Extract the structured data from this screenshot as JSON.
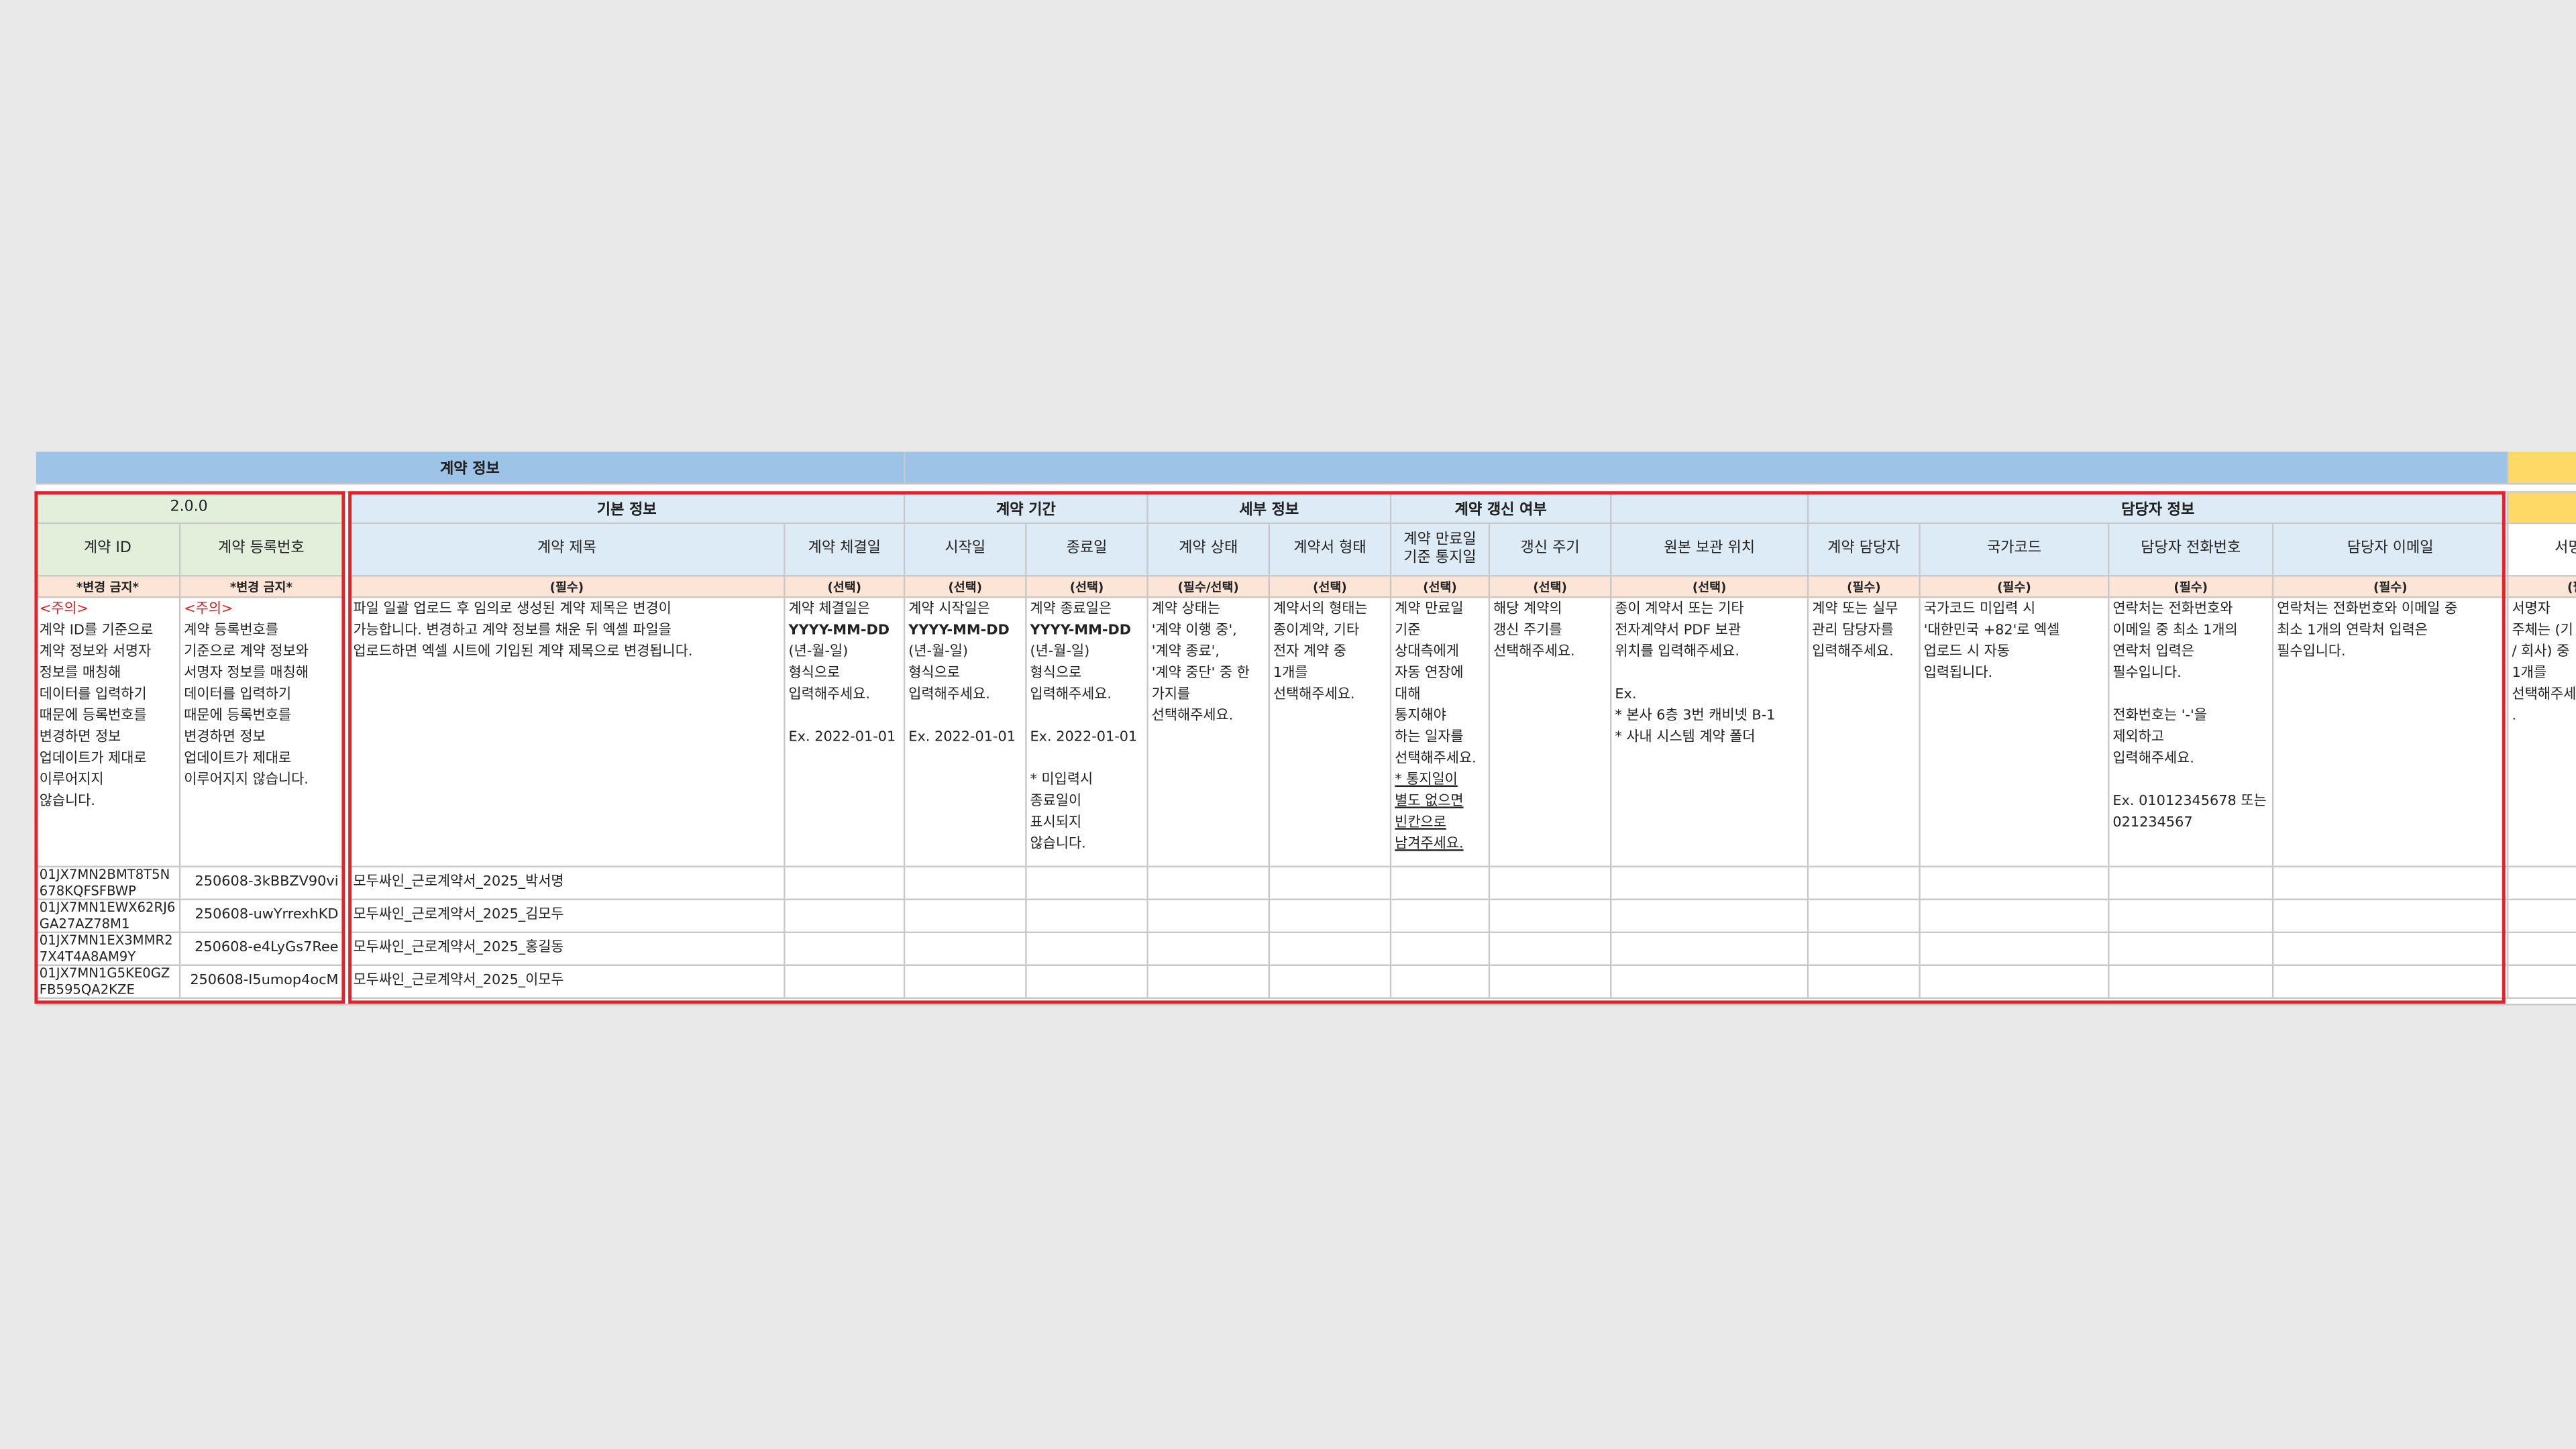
{
  "top_header": {
    "title": "계약 정보"
  },
  "version": "2.0.0",
  "groups": [
    "기본 정보",
    "계약 기간",
    "세부 정보",
    "계약 갱신 여부",
    "담당자 정보"
  ],
  "columns": [
    {
      "header": [
        "계약 ID"
      ],
      "requirement": "*변경 금지*",
      "note": "<주의>",
      "description": [
        [
          "계약 ID를 기준으로",
          "계약 정보와 서명자",
          "정보를 매칭해",
          "데이터를 입력하기",
          "때문에 등록번호를",
          "변경하면 정보",
          "업데이트가 제대로",
          "이루어지지",
          "않습니다."
        ]
      ]
    },
    {
      "header": [
        "계약 등록번호"
      ],
      "requirement": "*변경 금지*",
      "note": "<주의>",
      "description": [
        [
          "계약 등록번호를",
          "기준으로 계약 정보와",
          "서명자 정보를 매칭해",
          "데이터를 입력하기",
          "때문에 등록번호를",
          "변경하면 정보",
          "업데이트가 제대로",
          "이루어지지 않습니다."
        ]
      ]
    },
    {
      "header": [
        "계약 제목"
      ],
      "requirement": "(필수)",
      "description": [
        [
          "파일 일괄 업로드 후 임의로 생성된 계약 제목은 변경이",
          "가능합니다. 변경하고 계약 정보를 채운 뒤 엑셀 파일을",
          "업로드하면 엑셀 시트에 기입된 계약 제목으로 변경됩니다."
        ]
      ]
    },
    {
      "header": [
        "계약 체결일"
      ],
      "requirement": "(선택)",
      "description": [
        [
          "계약 체결일은",
          "YYYY-MM-DD",
          "(년-월-일)",
          "형식으로",
          "입력해주세요."
        ],
        [
          "Ex. 2022-01-01"
        ]
      ]
    },
    {
      "header": [
        "시작일"
      ],
      "requirement": "(선택)",
      "description": [
        [
          "계약 시작일은",
          "YYYY-MM-DD",
          "(년-월-일)",
          "형식으로",
          "입력해주세요."
        ],
        [
          "Ex. 2022-01-01"
        ]
      ]
    },
    {
      "header": [
        "종료일"
      ],
      "requirement": "(선택)",
      "description": [
        [
          "계약 종료일은",
          "YYYY-MM-DD",
          "(년-월-일)",
          "형식으로",
          "입력해주세요."
        ],
        [
          "Ex. 2022-01-01"
        ],
        [
          "* 미입력시",
          "종료일이",
          "표시되지",
          "않습니다."
        ]
      ]
    },
    {
      "header": [
        "계약 상태"
      ],
      "requirement": "(필수/선택)",
      "description": [
        [
          "계약 상태는",
          "'계약 이행 중',",
          "'계약 종료',",
          "'계약 중단' 중 한",
          "가지를",
          "선택해주세요."
        ]
      ]
    },
    {
      "header": [
        "계약서 형태"
      ],
      "requirement": "(선택)",
      "description": [
        [
          "계약서의 형태는",
          "종이계약, 기타",
          "전자 계약 중",
          "1개를",
          "선택해주세요."
        ]
      ]
    },
    {
      "header": [
        "계약 만료일",
        "기준 통지일"
      ],
      "requirement": "(선택)",
      "description": [
        [
          "계약 만료일",
          "기준",
          "상대측에게",
          "자동 연장에",
          "대해",
          "통지해야",
          "하는 일자를",
          "선택해주세요."
        ],
        [
          "* 통지일이",
          "별도 없으면",
          "빈칸으로",
          "남겨주세요."
        ]
      ]
    },
    {
      "header": [
        "갱신 주기"
      ],
      "requirement": "(선택)",
      "description": [
        [
          "해당 계약의",
          "갱신 주기를",
          "선택해주세요."
        ]
      ]
    },
    {
      "header": [
        "원본 보관 위치"
      ],
      "requirement": "(선택)",
      "description": [
        [
          "종이 계약서 또는 기타",
          "전자계약서 PDF 보관",
          "위치를 입력해주세요."
        ],
        [
          "Ex.",
          "* 본사 6층 3번 캐비넷 B-1",
          "* 사내 시스템 계약 폴더"
        ]
      ]
    },
    {
      "header": [
        "계약 담당자"
      ],
      "requirement": "(필수)",
      "description": [
        [
          "계약 또는 실무",
          "관리 담당자를",
          "입력해주세요."
        ]
      ]
    },
    {
      "header": [
        "국가코드"
      ],
      "requirement": "(필수)",
      "description": [
        [
          "국가코드 미입력 시",
          "'대한민국 +82'로 엑셀",
          "업로드 시 자동",
          "입력됩니다."
        ]
      ]
    },
    {
      "header": [
        "담당자 전화번호"
      ],
      "requirement": "(필수)",
      "description": [
        [
          "연락처는 전화번호와",
          "이메일 중 최소 1개의",
          "연락처 입력은",
          "필수입니다."
        ],
        [
          "전화번호는 '-'을",
          "제외하고",
          "입력해주세요."
        ],
        [
          "Ex. 01012345678 또는",
          "021234567"
        ]
      ]
    },
    {
      "header": [
        "담당자 이메일"
      ],
      "requirement": "(필수)",
      "description": [
        [
          "연락처는 전화번호와 이메일 중",
          "최소 1개의 연락처 입력은",
          "필수입니다."
        ]
      ]
    },
    {
      "header": [
        "서명자 주"
      ],
      "requirement": "(필수)",
      "description": [
        [
          "서명자",
          "주체는 (기",
          "/ 회사) 중",
          "1개를",
          "선택해주세",
          "."
        ]
      ]
    }
  ],
  "rows": [
    [
      "01JX7MN2BMT8T5N678KQFSFBWP",
      "250608-3kBBZV90vi",
      "모두싸인_근로계약서_2025_박서명"
    ],
    [
      "01JX7MN1EWX62RJ6GA27AZ78M1",
      "250608-uwYrrexhKD",
      "모두싸인_근로계약서_2025_김모두"
    ],
    [
      "01JX7MN1EX3MMR27X4T4A8AM9Y",
      "250608-e4LyGs7Ree",
      "모두싸인_근로계약서_2025_홍길동"
    ],
    [
      "01JX7MN1G5KE0GZFB595QA2KZE",
      "250608-I5umop4ocM",
      "모두싸인_근로계약서_2025_이모두"
    ]
  ]
}
